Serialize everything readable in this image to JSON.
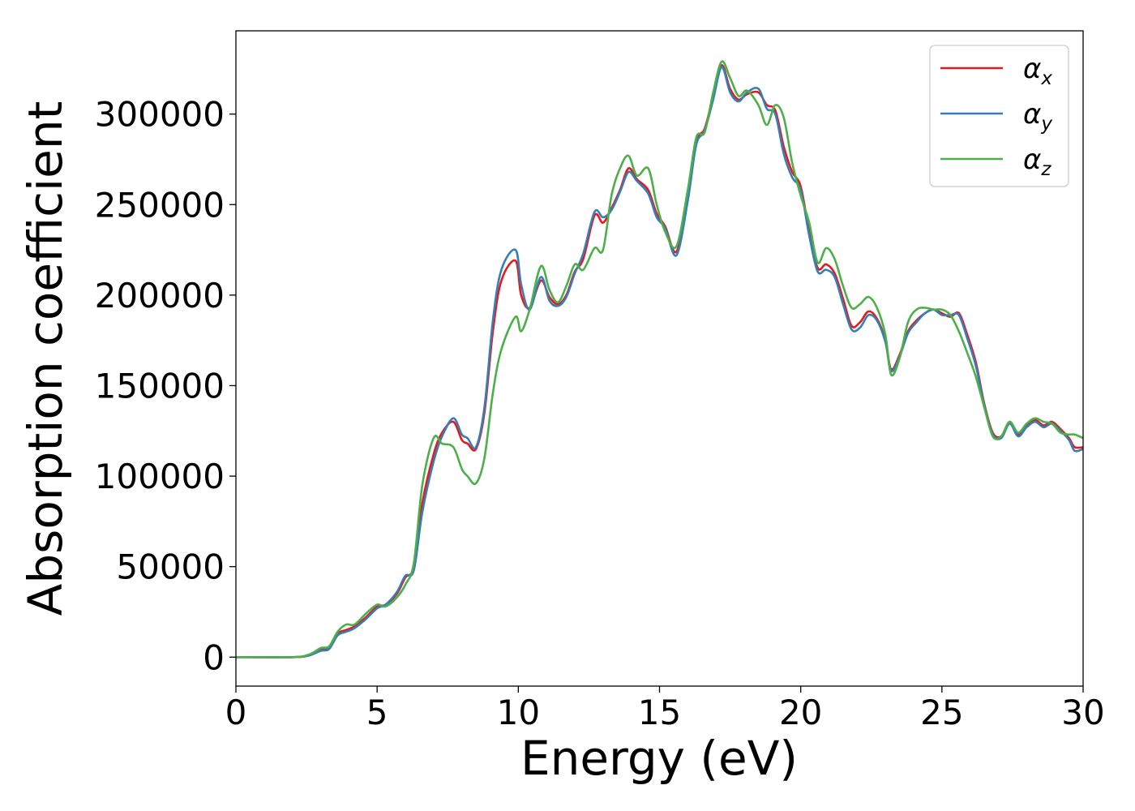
{
  "chart_data": {
    "type": "line",
    "title": "",
    "xlabel": "Energy (eV)",
    "ylabel": "Absorption coefficient",
    "xlim": [
      0,
      30
    ],
    "ylim": [
      -16000,
      346000
    ],
    "x_ticks": [
      0,
      5,
      10,
      15,
      20,
      25,
      30
    ],
    "y_ticks": [
      0,
      50000,
      100000,
      150000,
      200000,
      250000,
      300000
    ],
    "grid": false,
    "legend_position": "top-right",
    "series": [
      {
        "name": "αx",
        "symbol": "α",
        "subscript": "x",
        "color": "#e41a1c",
        "x": [
          0,
          2,
          2.6,
          3.0,
          3.3,
          3.6,
          3.9,
          4.2,
          4.6,
          5.0,
          5.3,
          5.7,
          6.0,
          6.3,
          6.6,
          7.0,
          7.3,
          7.7,
          8.0,
          8.2,
          8.5,
          8.8,
          9.1,
          9.4,
          9.9,
          10.1,
          10.4,
          10.8,
          11.1,
          11.4,
          11.7,
          12.0,
          12.3,
          12.7,
          13.0,
          13.3,
          13.6,
          13.9,
          14.2,
          14.6,
          14.9,
          15.2,
          15.6,
          16.0,
          16.3,
          16.6,
          16.9,
          17.2,
          17.5,
          17.8,
          18.1,
          18.5,
          18.8,
          19.1,
          19.4,
          19.7,
          20.0,
          20.3,
          20.6,
          20.9,
          21.2,
          21.5,
          21.8,
          22.1,
          22.4,
          22.7,
          23.0,
          23.2,
          23.5,
          23.8,
          24.1,
          24.4,
          24.7,
          25.0,
          25.3,
          25.6,
          25.9,
          26.2,
          26.5,
          26.8,
          27.1,
          27.4,
          27.7,
          28.0,
          28.3,
          28.6,
          28.9,
          29.2,
          29.5,
          29.7,
          30.0
        ],
        "values": [
          0,
          0,
          1000,
          4000,
          5000,
          13000,
          15000,
          17000,
          22000,
          28000,
          29000,
          35000,
          44000,
          50000,
          85000,
          112000,
          124000,
          130000,
          120000,
          118000,
          115000,
          135000,
          180000,
          208000,
          219000,
          200000,
          193000,
          208000,
          199000,
          195000,
          200000,
          213000,
          220000,
          244000,
          240000,
          248000,
          258000,
          270000,
          264000,
          258000,
          245000,
          238000,
          224000,
          255000,
          285000,
          292000,
          310000,
          327000,
          314000,
          308000,
          311000,
          312000,
          305000,
          302000,
          282000,
          268000,
          260000,
          235000,
          215000,
          217000,
          212000,
          198000,
          183000,
          185000,
          191000,
          187000,
          175000,
          159000,
          167000,
          180000,
          186000,
          190000,
          192000,
          190000,
          188000,
          190000,
          178000,
          163000,
          140000,
          124000,
          122000,
          130000,
          123000,
          128000,
          131000,
          128000,
          130000,
          126000,
          121000,
          116000,
          116000
        ]
      },
      {
        "name": "αy",
        "symbol": "α",
        "subscript": "y",
        "color": "#377eb8",
        "x": [
          0,
          2,
          2.6,
          3.0,
          3.3,
          3.6,
          3.9,
          4.2,
          4.6,
          5.0,
          5.3,
          5.7,
          6.0,
          6.3,
          6.6,
          7.0,
          7.3,
          7.7,
          8.0,
          8.2,
          8.5,
          8.8,
          9.1,
          9.4,
          9.9,
          10.1,
          10.4,
          10.8,
          11.1,
          11.4,
          11.7,
          12.0,
          12.3,
          12.7,
          13.0,
          13.3,
          13.6,
          13.9,
          14.2,
          14.6,
          14.9,
          15.2,
          15.6,
          16.0,
          16.3,
          16.6,
          16.9,
          17.2,
          17.5,
          17.8,
          18.1,
          18.5,
          18.8,
          19.1,
          19.4,
          19.7,
          20.0,
          20.3,
          20.6,
          20.9,
          21.2,
          21.5,
          21.8,
          22.1,
          22.4,
          22.7,
          23.0,
          23.2,
          23.5,
          23.8,
          24.1,
          24.4,
          24.7,
          25.0,
          25.3,
          25.6,
          25.9,
          26.2,
          26.5,
          26.8,
          27.1,
          27.4,
          27.7,
          28.0,
          28.3,
          28.6,
          28.9,
          29.2,
          29.5,
          29.7,
          30.0
        ],
        "values": [
          0,
          0,
          1000,
          3500,
          4500,
          12000,
          14000,
          16000,
          21000,
          27000,
          29000,
          36000,
          45000,
          48000,
          80000,
          108000,
          122000,
          132000,
          123000,
          121000,
          116000,
          138000,
          186000,
          214000,
          225000,
          206000,
          192000,
          210000,
          197000,
          194000,
          199000,
          212000,
          223000,
          246000,
          243000,
          247000,
          257000,
          268000,
          263000,
          256000,
          243000,
          237000,
          222000,
          252000,
          283000,
          291000,
          308000,
          326000,
          312000,
          307000,
          312000,
          314000,
          303000,
          300000,
          278000,
          265000,
          258000,
          233000,
          213000,
          214000,
          210000,
          195000,
          181000,
          182000,
          189000,
          186000,
          174000,
          158000,
          166000,
          179000,
          185000,
          190000,
          192000,
          189000,
          189000,
          189000,
          176000,
          161000,
          139000,
          123000,
          121000,
          129000,
          122000,
          127000,
          130000,
          127000,
          129000,
          125000,
          120000,
          114000,
          115000
        ]
      },
      {
        "name": "αz",
        "symbol": "α",
        "subscript": "z",
        "color": "#4daf4a",
        "x": [
          0,
          2,
          2.6,
          3.0,
          3.3,
          3.6,
          3.9,
          4.2,
          4.6,
          5.0,
          5.3,
          5.7,
          6.0,
          6.3,
          6.6,
          7.0,
          7.3,
          7.7,
          8.0,
          8.2,
          8.5,
          8.8,
          9.1,
          9.4,
          9.9,
          10.1,
          10.4,
          10.8,
          11.1,
          11.4,
          11.7,
          12.0,
          12.3,
          12.7,
          13.0,
          13.3,
          13.6,
          13.9,
          14.2,
          14.6,
          14.9,
          15.2,
          15.6,
          16.0,
          16.3,
          16.6,
          16.9,
          17.2,
          17.5,
          17.8,
          18.1,
          18.5,
          18.8,
          19.1,
          19.4,
          19.7,
          20.0,
          20.3,
          20.6,
          20.9,
          21.2,
          21.5,
          21.8,
          22.1,
          22.4,
          22.7,
          23.0,
          23.2,
          23.5,
          23.8,
          24.1,
          24.4,
          24.7,
          25.0,
          25.3,
          25.6,
          25.9,
          26.2,
          26.5,
          26.8,
          27.1,
          27.4,
          27.7,
          28.0,
          28.3,
          28.6,
          28.9,
          29.2,
          29.5,
          29.7,
          30.0
        ],
        "values": [
          0,
          0,
          1500,
          5000,
          6000,
          14000,
          18000,
          18000,
          24000,
          29000,
          28000,
          33000,
          40000,
          52000,
          95000,
          121000,
          118000,
          116000,
          104000,
          100000,
          96000,
          110000,
          146000,
          170000,
          188000,
          180000,
          192000,
          216000,
          203000,
          196000,
          205000,
          217000,
          214000,
          226000,
          225000,
          255000,
          270000,
          277000,
          266000,
          270000,
          250000,
          235000,
          227000,
          258000,
          287000,
          290000,
          312000,
          329000,
          320000,
          310000,
          313000,
          305000,
          294000,
          305000,
          298000,
          273000,
          255000,
          240000,
          218000,
          226000,
          220000,
          205000,
          193000,
          195000,
          199000,
          193000,
          178000,
          156000,
          165000,
          185000,
          192000,
          193000,
          192000,
          192000,
          189000,
          180000,
          168000,
          155000,
          138000,
          122000,
          122000,
          130000,
          124000,
          129000,
          132000,
          130000,
          129000,
          124000,
          123000,
          123000,
          121000
        ]
      }
    ]
  }
}
